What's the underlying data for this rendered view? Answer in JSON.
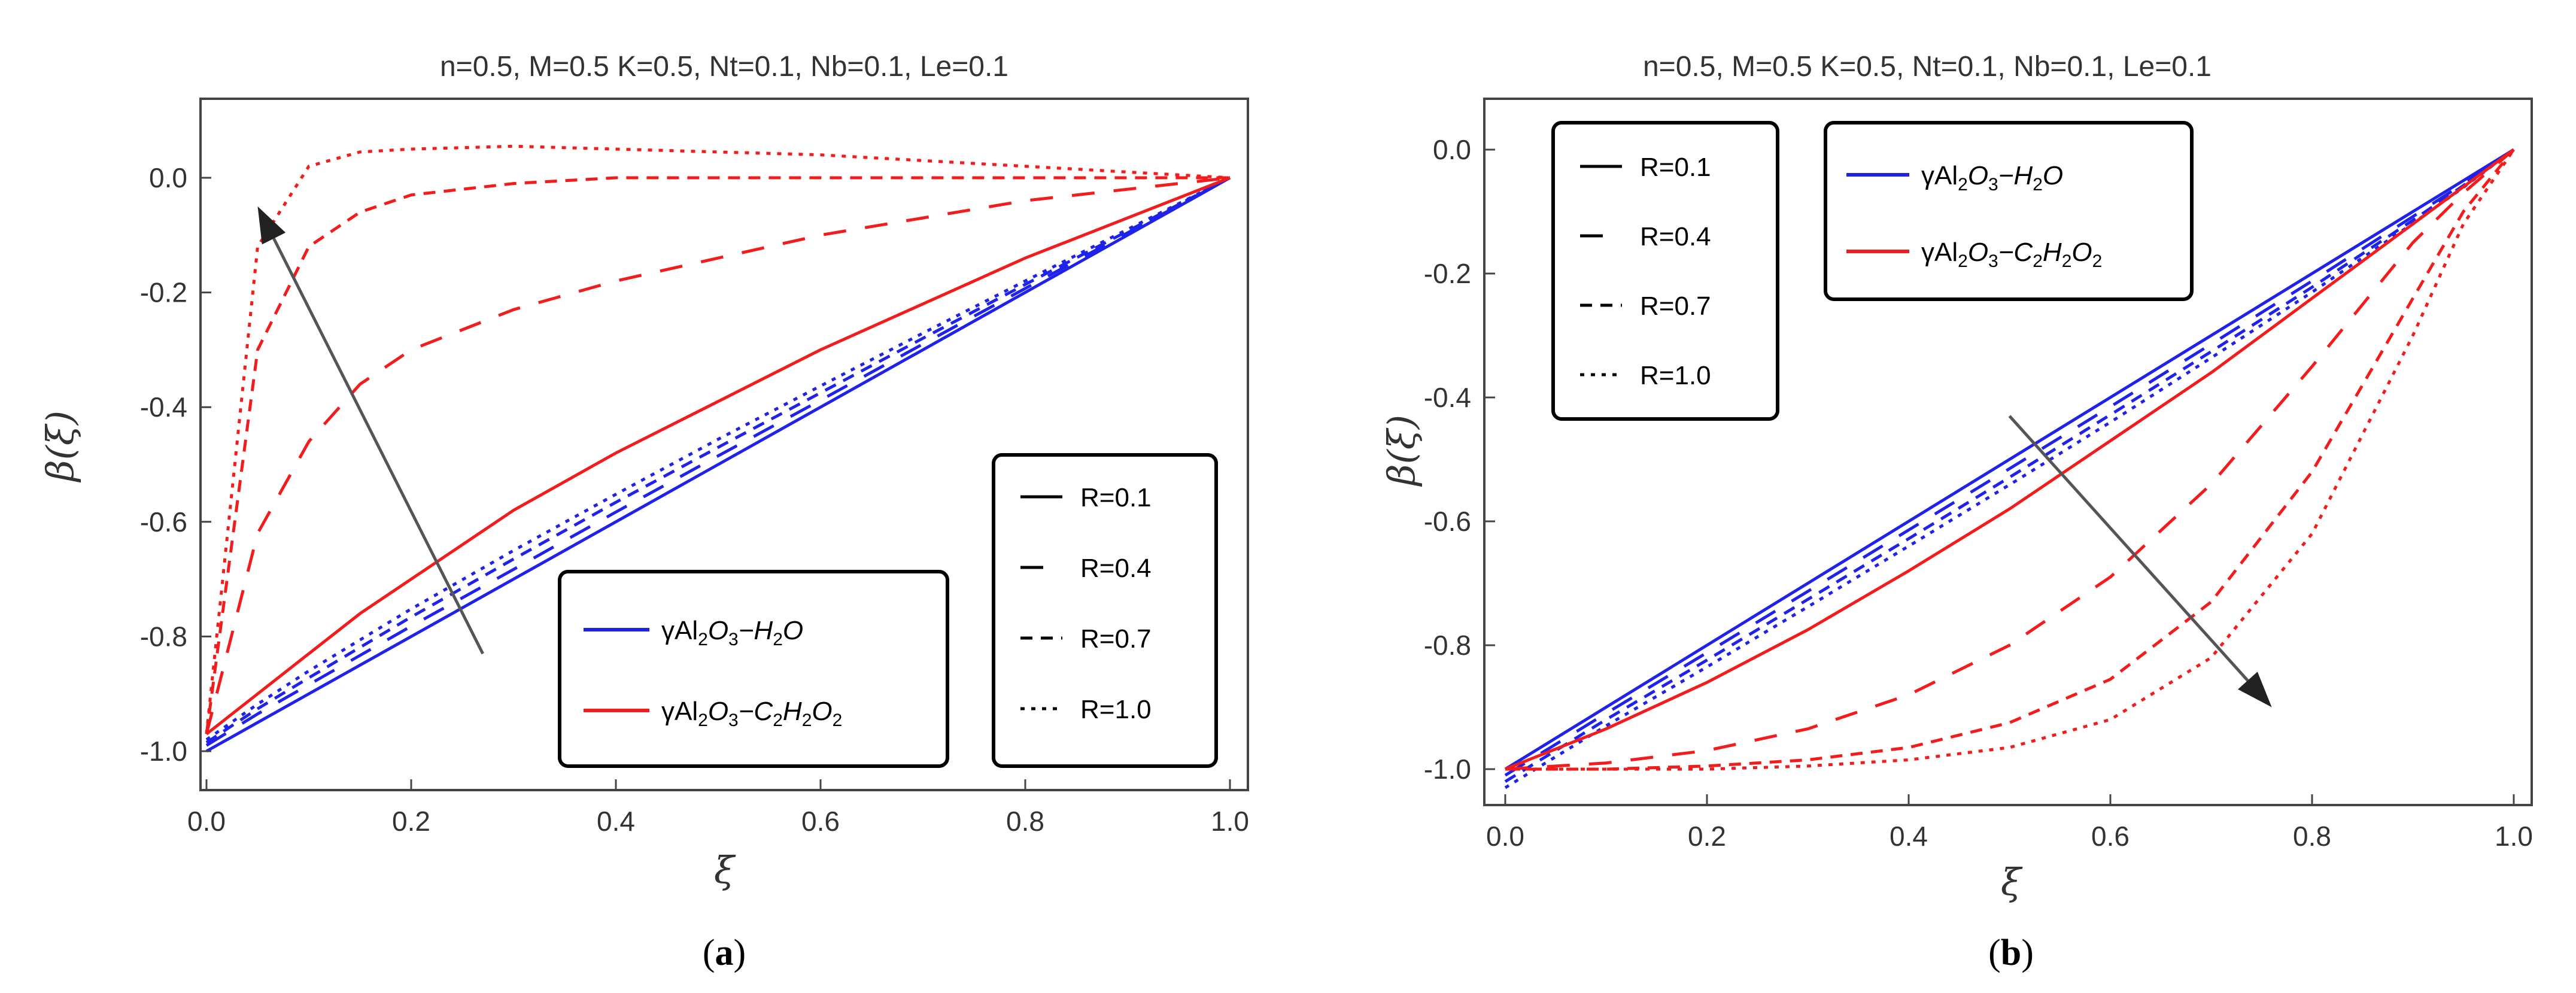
{
  "colors": {
    "series_h2o": "#1f22e8",
    "series_c2h2o2": "#f21c1c",
    "arrow": "#555555",
    "axis": "#444444"
  },
  "panels": [
    {
      "caption_open": "(",
      "caption_letter": "a",
      "caption_close": ")",
      "title": "n=0.5, M=0.5 K=0.5, Nt=0.1, Nb=0.1, Le=0.1",
      "xlabel": "ξ",
      "ylabel": "β(ξ)",
      "x_ticks": [
        "0.0",
        "0.2",
        "0.4",
        "0.6",
        "0.8",
        "1.0"
      ],
      "y_ticks": [
        "0.0",
        "-0.2",
        "-0.4",
        "-0.6",
        "-0.8",
        "-1.0"
      ],
      "fluid_legend": [
        {
          "main": "γAl",
          "s1": "2",
          "m2": "O",
          "s2": "3",
          "m3": "−H",
          "s3": "2",
          "m4": "O",
          "s4": "",
          "m5": "",
          "s5": "",
          "color_key": "series_h2o"
        },
        {
          "main": "γAl",
          "s1": "2",
          "m2": "O",
          "s2": "3",
          "m3": "−C",
          "s3": "2",
          "m4": "H",
          "s4": "2",
          "m5": "O",
          "s5": "2",
          "color_key": "series_c2h2o2"
        }
      ],
      "r_legend": [
        "R=0.1",
        "R=0.4",
        "R=0.7",
        "R=1.0"
      ]
    },
    {
      "caption_open": "(",
      "caption_letter": "b",
      "caption_close": ")",
      "title": "n=0.5, M=0.5 K=0.5, Nt=0.1, Nb=0.1, Le=0.1",
      "xlabel": "ξ",
      "ylabel": "β(ξ)",
      "x_ticks": [
        "0.0",
        "0.2",
        "0.4",
        "0.6",
        "0.8",
        "1.0"
      ],
      "y_ticks": [
        "0.0",
        "-0.2",
        "-0.4",
        "-0.6",
        "-0.8",
        "-1.0"
      ],
      "fluid_legend": [
        {
          "main": "γAl",
          "s1": "2",
          "m2": "O",
          "s2": "3",
          "m3": "−H",
          "s3": "2",
          "m4": "O",
          "s4": "",
          "m5": "",
          "s5": "",
          "color_key": "series_h2o"
        },
        {
          "main": "γAl",
          "s1": "2",
          "m2": "O",
          "s2": "3",
          "m3": "−C",
          "s3": "2",
          "m4": "H",
          "s4": "2",
          "m5": "O",
          "s5": "2",
          "color_key": "series_c2h2o2"
        }
      ],
      "r_legend": [
        "R=0.1",
        "R=0.4",
        "R=0.7",
        "R=1.0"
      ]
    }
  ],
  "chart_data": [
    {
      "type": "line",
      "title": "n=0.5, M=0.5 K=0.5, Nt=0.1, Nb=0.1, Le=0.1",
      "xlabel": "ξ",
      "ylabel": "β(ξ)",
      "xlim": [
        0,
        1
      ],
      "ylim": [
        -1.05,
        0.1
      ],
      "x": [
        0,
        0.05,
        0.1,
        0.15,
        0.2,
        0.3,
        0.4,
        0.5,
        0.6,
        0.7,
        0.8,
        0.9,
        1.0
      ],
      "series": [
        {
          "name": "γAl2O3−H2O, R=0.1",
          "fluid": "h2o",
          "R": 0.1,
          "values": [
            -1.0,
            -0.95,
            -0.9,
            -0.85,
            -0.8,
            -0.7,
            -0.6,
            -0.5,
            -0.4,
            -0.3,
            -0.2,
            -0.1,
            0.0
          ]
        },
        {
          "name": "γAl2O3−H2O, R=0.4",
          "fluid": "h2o",
          "R": 0.4,
          "values": [
            -0.99,
            -0.935,
            -0.884,
            -0.833,
            -0.782,
            -0.683,
            -0.583,
            -0.485,
            -0.388,
            -0.29,
            -0.193,
            -0.096,
            0.0
          ]
        },
        {
          "name": "γAl2O3−H2O, R=0.7",
          "fluid": "h2o",
          "R": 0.7,
          "values": [
            -0.985,
            -0.926,
            -0.872,
            -0.819,
            -0.766,
            -0.665,
            -0.566,
            -0.47,
            -0.375,
            -0.28,
            -0.186,
            -0.093,
            0.0
          ]
        },
        {
          "name": "γAl2O3−H2O, R=1.0",
          "fluid": "h2o",
          "R": 1.0,
          "values": [
            -0.98,
            -0.918,
            -0.86,
            -0.806,
            -0.752,
            -0.65,
            -0.552,
            -0.456,
            -0.363,
            -0.271,
            -0.18,
            -0.09,
            0.0
          ]
        },
        {
          "name": "γAl2O3−C2H2O2, R=0.1",
          "fluid": "c2h2o2",
          "R": 0.1,
          "values": [
            -0.97,
            -0.9,
            -0.83,
            -0.76,
            -0.7,
            -0.58,
            -0.48,
            -0.39,
            -0.3,
            -0.22,
            -0.14,
            -0.07,
            0.0
          ]
        },
        {
          "name": "γAl2O3−C2H2O2, R=0.4",
          "fluid": "c2h2o2",
          "R": 0.4,
          "values": [
            -0.97,
            -0.62,
            -0.46,
            -0.36,
            -0.3,
            -0.23,
            -0.18,
            -0.14,
            -0.1,
            -0.07,
            -0.04,
            -0.02,
            0.0
          ]
        },
        {
          "name": "γAl2O3−C2H2O2, R=0.7",
          "fluid": "c2h2o2",
          "R": 0.7,
          "values": [
            -0.97,
            -0.3,
            -0.12,
            -0.06,
            -0.03,
            -0.01,
            0.0,
            0.0,
            0.0,
            0.0,
            0.0,
            0.0,
            0.0
          ]
        },
        {
          "name": "γAl2O3−C2H2O2, R=1.0",
          "fluid": "c2h2o2",
          "R": 1.0,
          "values": [
            -0.97,
            -0.12,
            0.02,
            0.045,
            0.05,
            0.055,
            0.05,
            0.045,
            0.04,
            0.03,
            0.02,
            0.01,
            0.0
          ]
        }
      ],
      "legend": [
        "R=0.1",
        "R=0.4",
        "R=0.7",
        "R=1.0",
        "γAl2O3−H2O",
        "γAl2O3−C2H2O2"
      ],
      "annotations": [
        {
          "type": "arrow",
          "meaning": "increasing R",
          "from": [
            0.27,
            -0.83
          ],
          "to": [
            0.05,
            -0.05
          ]
        }
      ]
    },
    {
      "type": "line",
      "title": "n=0.5, M=0.5 K=0.5, Nt=0.1, Nb=0.1, Le=0.1",
      "xlabel": "ξ",
      "ylabel": "β(ξ)",
      "xlim": [
        0,
        1
      ],
      "ylim": [
        -1.08,
        0.1
      ],
      "x": [
        0,
        0.1,
        0.2,
        0.3,
        0.4,
        0.5,
        0.6,
        0.7,
        0.8,
        0.9,
        0.95,
        1.0
      ],
      "series": [
        {
          "name": "γAl2O3−H2O, R=0.1",
          "fluid": "h2o",
          "R": 0.1,
          "values": [
            -1.0,
            -0.9,
            -0.8,
            -0.7,
            -0.6,
            -0.5,
            -0.4,
            -0.3,
            -0.2,
            -0.1,
            -0.05,
            0.0
          ]
        },
        {
          "name": "γAl2O3−H2O, R=0.4",
          "fluid": "h2o",
          "R": 0.4,
          "values": [
            -1.01,
            -0.91,
            -0.812,
            -0.713,
            -0.614,
            -0.515,
            -0.415,
            -0.314,
            -0.212,
            -0.108,
            -0.055,
            0.0
          ]
        },
        {
          "name": "γAl2O3−H2O, R=0.7",
          "fluid": "h2o",
          "R": 0.7,
          "values": [
            -1.02,
            -0.92,
            -0.824,
            -0.726,
            -0.628,
            -0.529,
            -0.428,
            -0.326,
            -0.222,
            -0.114,
            -0.058,
            0.0
          ]
        },
        {
          "name": "γAl2O3−H2O, R=1.0",
          "fluid": "h2o",
          "R": 1.0,
          "values": [
            -1.03,
            -0.93,
            -0.835,
            -0.738,
            -0.64,
            -0.541,
            -0.44,
            -0.336,
            -0.23,
            -0.119,
            -0.061,
            0.0
          ]
        },
        {
          "name": "γAl2O3−C2H2O2, R=0.1",
          "fluid": "c2h2o2",
          "R": 0.1,
          "values": [
            -1.0,
            -0.935,
            -0.86,
            -0.775,
            -0.68,
            -0.58,
            -0.47,
            -0.36,
            -0.24,
            -0.12,
            -0.06,
            0.0
          ]
        },
        {
          "name": "γAl2O3−C2H2O2, R=0.4",
          "fluid": "c2h2o2",
          "R": 0.4,
          "values": [
            -1.0,
            -0.99,
            -0.97,
            -0.935,
            -0.88,
            -0.8,
            -0.69,
            -0.54,
            -0.35,
            -0.15,
            -0.07,
            0.0
          ]
        },
        {
          "name": "γAl2O3−C2H2O2, R=0.7",
          "fluid": "c2h2o2",
          "R": 0.7,
          "values": [
            -1.0,
            -1.0,
            -0.995,
            -0.985,
            -0.965,
            -0.925,
            -0.855,
            -0.73,
            -0.52,
            -0.24,
            -0.1,
            0.0
          ]
        },
        {
          "name": "γAl2O3−C2H2O2, R=1.0",
          "fluid": "c2h2o2",
          "R": 1.0,
          "values": [
            -1.0,
            -1.0,
            -1.0,
            -0.995,
            -0.985,
            -0.965,
            -0.92,
            -0.82,
            -0.62,
            -0.3,
            -0.12,
            0.0
          ]
        }
      ],
      "legend": [
        "R=0.1",
        "R=0.4",
        "R=0.7",
        "R=1.0",
        "γAl2O3−H2O",
        "γAl2O3−C2H2O2"
      ],
      "annotations": [
        {
          "type": "arrow",
          "meaning": "increasing R",
          "from": [
            0.5,
            -0.43
          ],
          "to": [
            0.76,
            -0.9
          ]
        }
      ]
    }
  ]
}
